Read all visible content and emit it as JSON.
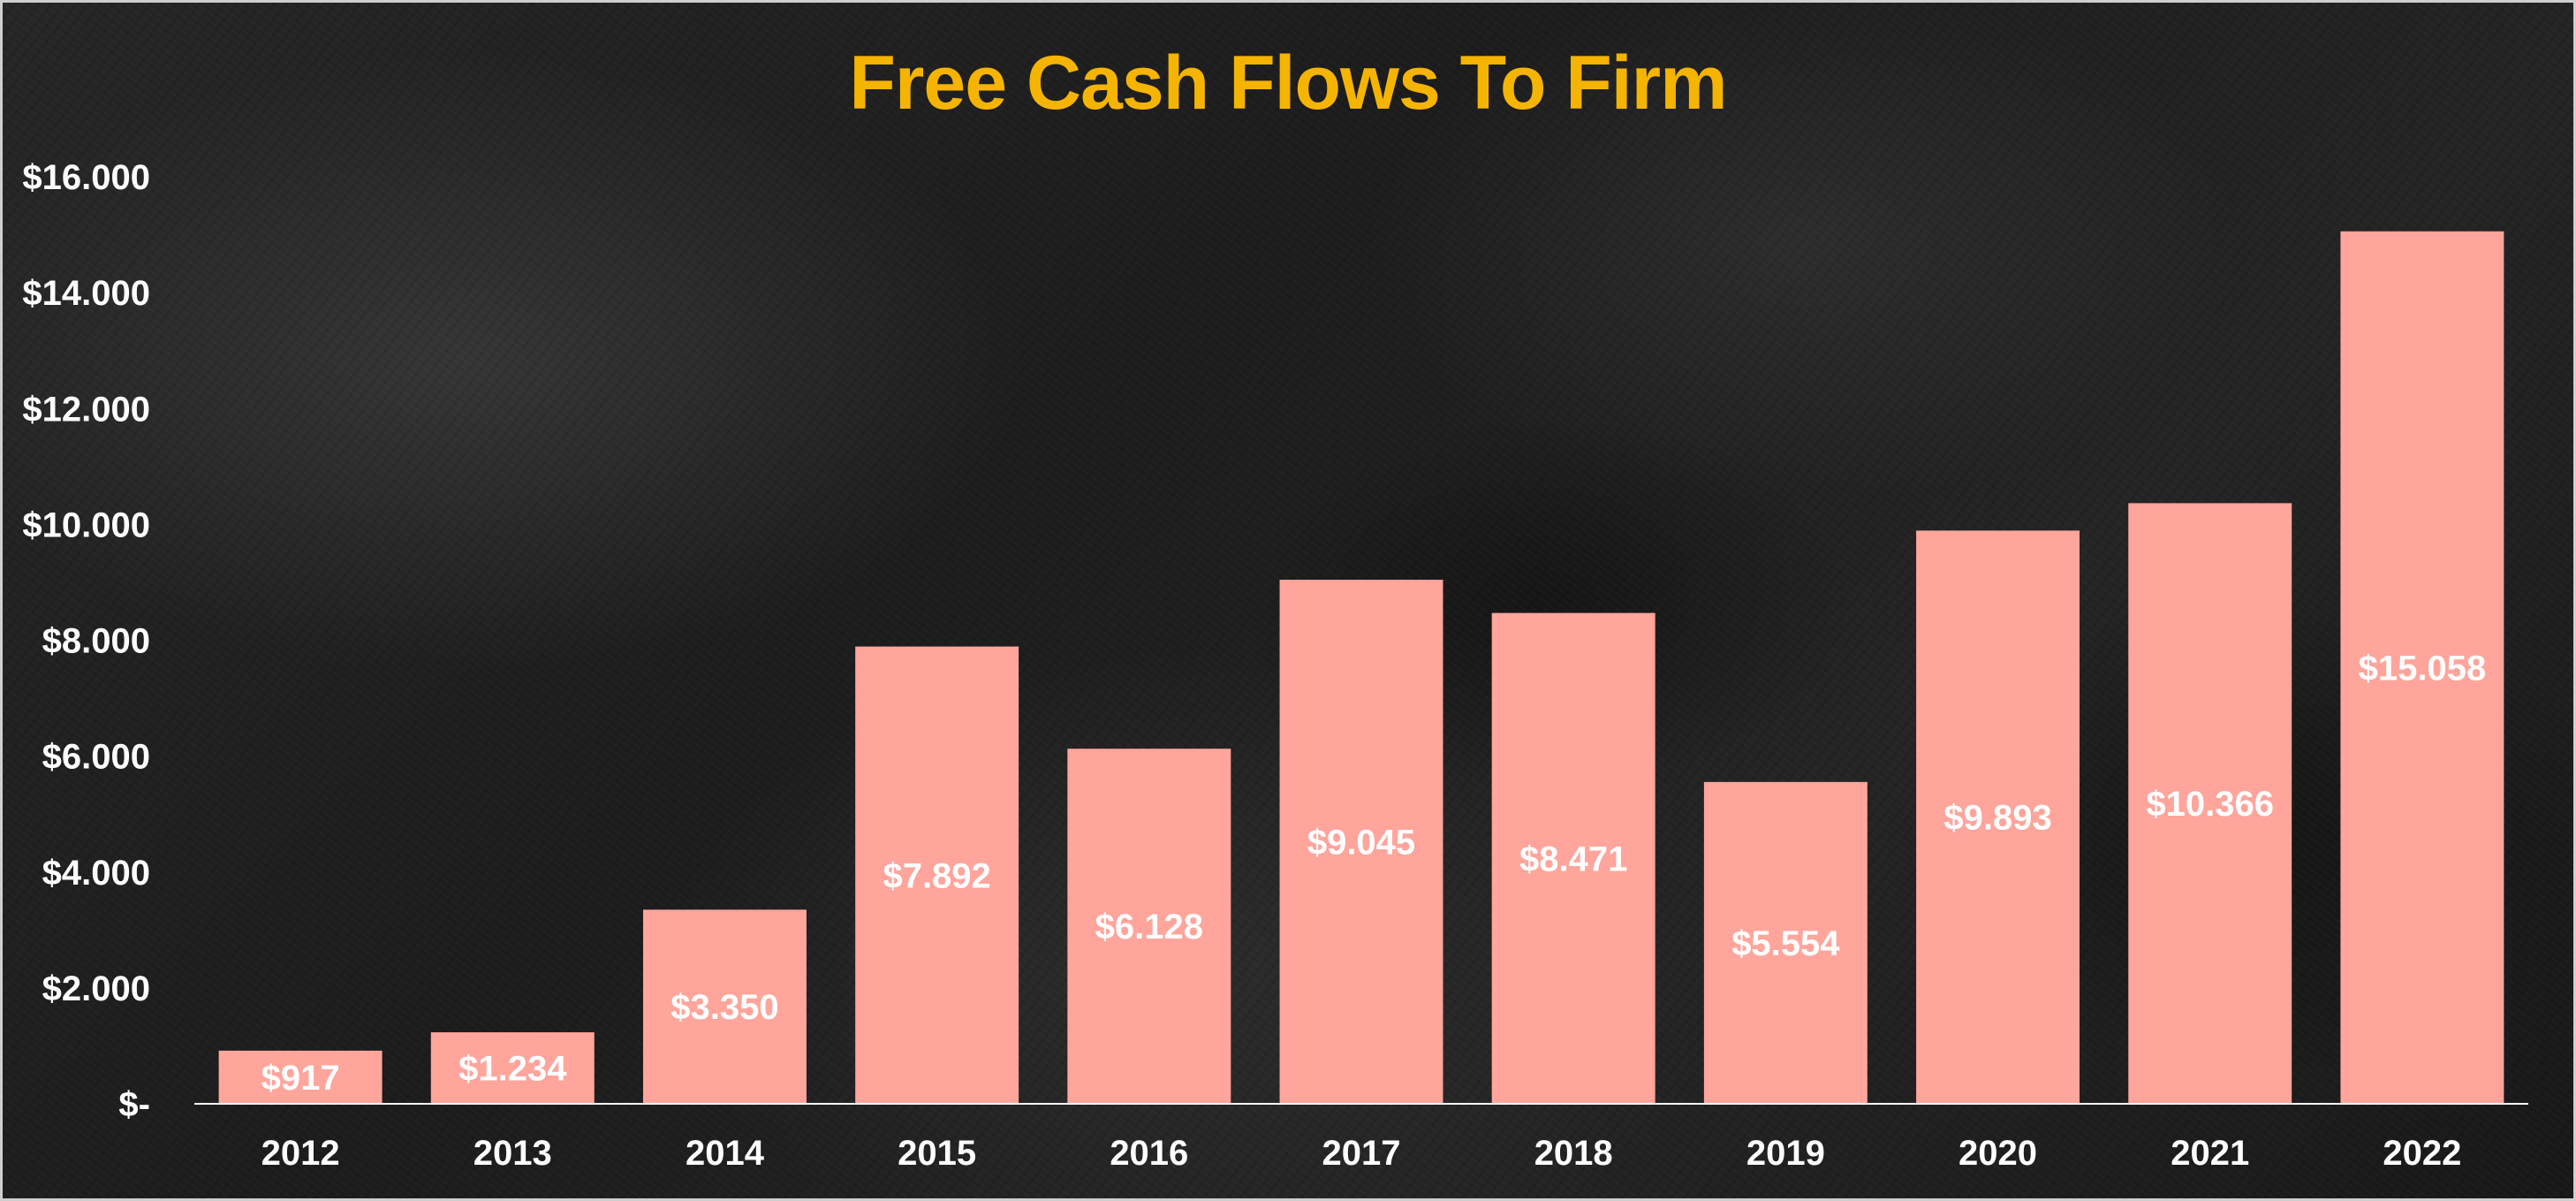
{
  "chart_data": {
    "type": "bar",
    "title": "Free Cash Flows To Firm",
    "xlabel": "",
    "ylabel": "",
    "categories": [
      "2012",
      "2013",
      "2014",
      "2015",
      "2016",
      "2017",
      "2018",
      "2019",
      "2020",
      "2021",
      "2022"
    ],
    "values": [
      917,
      1234,
      3350,
      7892,
      6128,
      9045,
      8471,
      5554,
      9893,
      10366,
      15058
    ],
    "data_labels": [
      "$917",
      "$1.234",
      "$3.350",
      "$7.892",
      "$6.128",
      "$9.045",
      "$8.471",
      "$5.554",
      "$9.893",
      "$10.366",
      "$15.058"
    ],
    "ylim": [
      0,
      16000
    ],
    "yticks": [
      0,
      2000,
      4000,
      6000,
      8000,
      10000,
      12000,
      14000,
      16000
    ],
    "ytick_labels": [
      "$-",
      "$2.000",
      "$4.000",
      "$6.000",
      "$8.000",
      "$10.000",
      "$12.000",
      "$14.000",
      "$16.000"
    ],
    "grid": false,
    "legend": "none",
    "colors": {
      "bar": "#ffa59c",
      "title": "#f5b400",
      "text": "#ffffff",
      "axis": "#ffffff",
      "background": "#1e1e1e"
    }
  }
}
